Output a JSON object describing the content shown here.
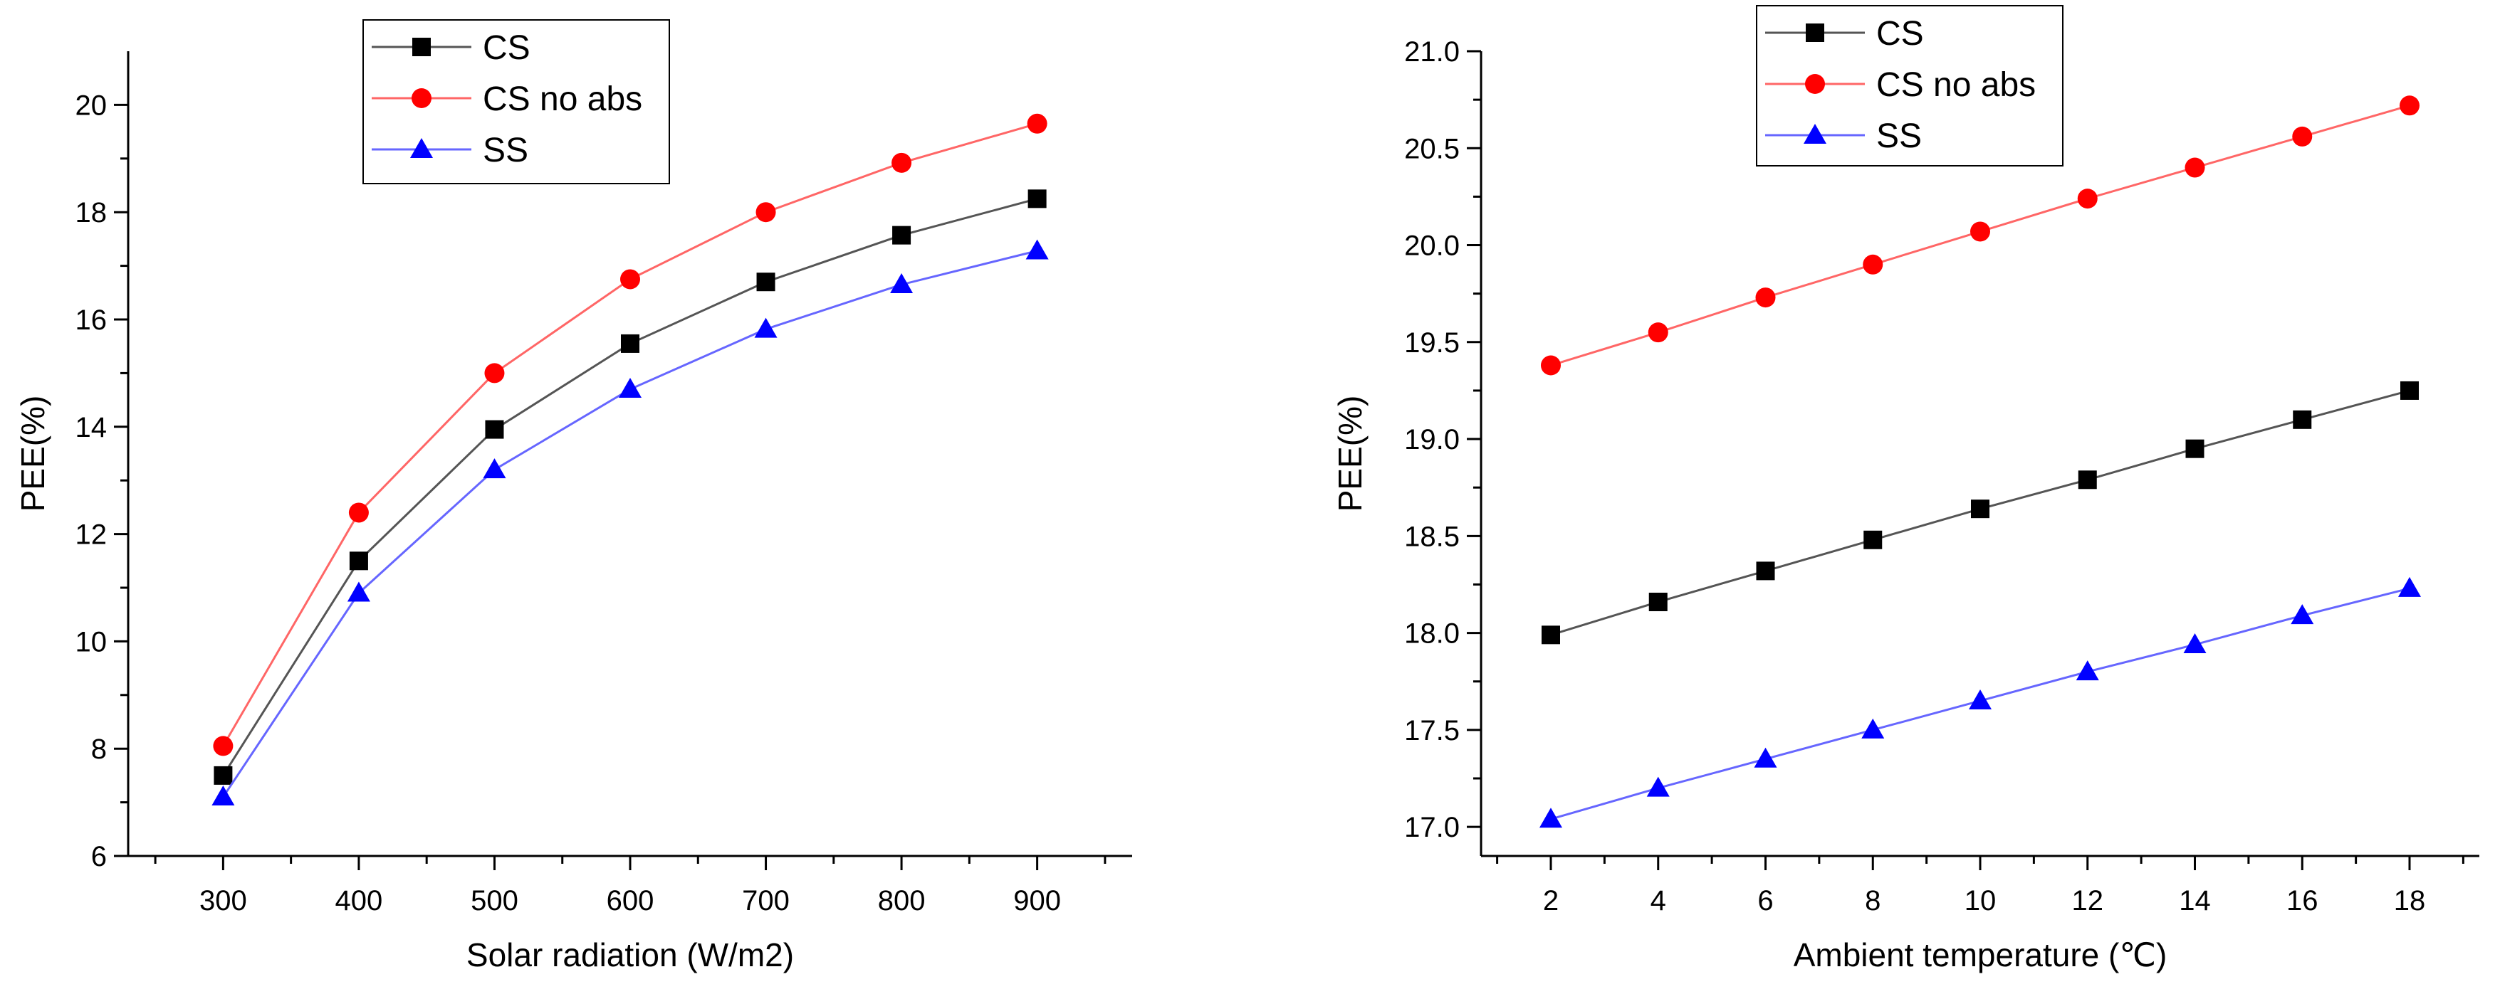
{
  "chart_data": [
    {
      "type": "line",
      "title": "",
      "xlabel": "Solar radiation (W/m2)",
      "ylabel": "PEE(%)",
      "x": [
        300,
        400,
        500,
        600,
        700,
        800,
        900
      ],
      "x_tick_labels": [
        "300",
        "400",
        "500",
        "600",
        "700",
        "800",
        "900"
      ],
      "y_tick_labels": [
        "6",
        "8",
        "10",
        "12",
        "14",
        "16",
        "18",
        "20"
      ],
      "xlim": [
        230,
        970
      ],
      "ylim": [
        6,
        21
      ],
      "grid": false,
      "legend_position": "top-center",
      "series": [
        {
          "name": "CS",
          "color": "#000000",
          "line_color": "#555555",
          "marker": "square",
          "values": [
            7.5,
            11.5,
            13.95,
            15.55,
            16.7,
            17.57,
            18.25
          ]
        },
        {
          "name": "CS no abs",
          "color": "#ff0000",
          "line_color": "#ff6666",
          "marker": "circle",
          "values": [
            8.05,
            12.4,
            15.0,
            16.75,
            18.0,
            18.92,
            19.65
          ]
        },
        {
          "name": "SS",
          "color": "#0000ff",
          "line_color": "#6666ff",
          "marker": "triangle",
          "values": [
            7.1,
            10.9,
            13.2,
            14.7,
            15.82,
            16.65,
            17.28
          ]
        }
      ]
    },
    {
      "type": "line",
      "title": "",
      "xlabel": "Ambient temperature (℃)",
      "ylabel": "PEE(%)",
      "x": [
        2,
        4,
        6,
        8,
        10,
        12,
        14,
        16,
        18
      ],
      "x_tick_labels": [
        "2",
        "4",
        "6",
        "8",
        "10",
        "12",
        "14",
        "16",
        "18"
      ],
      "y_tick_labels": [
        "17.0",
        "17.5",
        "18.0",
        "18.5",
        "19.0",
        "19.5",
        "20.0",
        "20.5",
        "21.0"
      ],
      "xlim": [
        0.7,
        19.3
      ],
      "ylim": [
        16.85,
        21.0
      ],
      "grid": false,
      "legend_position": "top-left",
      "series": [
        {
          "name": "CS",
          "color": "#000000",
          "line_color": "#555555",
          "marker": "square",
          "values": [
            17.99,
            18.16,
            18.32,
            18.48,
            18.64,
            18.79,
            18.95,
            19.1,
            19.25
          ]
        },
        {
          "name": "CS no abs",
          "color": "#ff0000",
          "line_color": "#ff6666",
          "marker": "circle",
          "values": [
            19.38,
            19.55,
            19.73,
            19.9,
            20.07,
            20.24,
            20.4,
            20.56,
            20.72
          ]
        },
        {
          "name": "SS",
          "color": "#0000ff",
          "line_color": "#6666ff",
          "marker": "triangle",
          "values": [
            17.04,
            17.2,
            17.35,
            17.5,
            17.65,
            17.8,
            17.94,
            18.09,
            18.23
          ]
        }
      ]
    }
  ]
}
